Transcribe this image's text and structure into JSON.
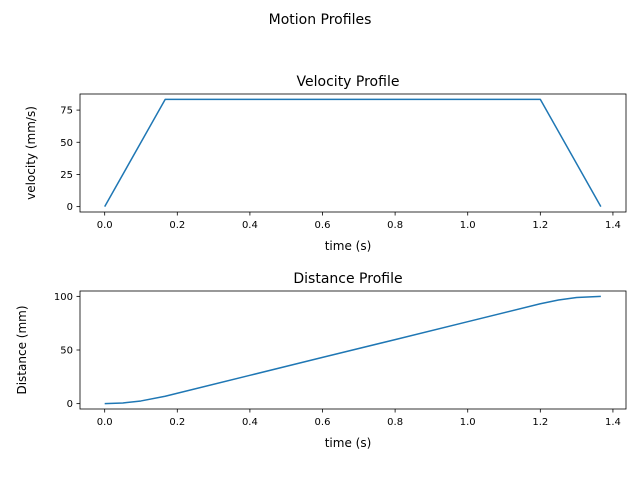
{
  "figure": {
    "suptitle": "Motion Profiles"
  },
  "chart_data": [
    {
      "type": "line",
      "title": "Velocity Profile",
      "xlabel": "time (s)",
      "ylabel": "velocity (mm/s)",
      "xlim": [
        -0.068,
        1.436
      ],
      "ylim": [
        -4.17,
        87.5
      ],
      "xticks": [
        0.0,
        0.2,
        0.4,
        0.6,
        0.8,
        1.0,
        1.2,
        1.4
      ],
      "xtick_labels": [
        "0.0",
        "0.2",
        "0.4",
        "0.6",
        "0.8",
        "1.0",
        "1.2",
        "1.4"
      ],
      "yticks": [
        0,
        25,
        50,
        75
      ],
      "ytick_labels": [
        "0",
        "25",
        "50",
        "75"
      ],
      "grid": false,
      "series": [
        {
          "color": "#1f77b4",
          "x": [
            0.0,
            0.1667,
            1.2,
            1.3667
          ],
          "y": [
            0,
            83.33,
            83.33,
            0
          ]
        }
      ]
    },
    {
      "type": "line",
      "title": "Distance Profile",
      "xlabel": "time (s)",
      "ylabel": "Distance (mm)",
      "xlim": [
        -0.068,
        1.436
      ],
      "ylim": [
        -5,
        105
      ],
      "xticks": [
        0.0,
        0.2,
        0.4,
        0.6,
        0.8,
        1.0,
        1.2,
        1.4
      ],
      "xtick_labels": [
        "0.0",
        "0.2",
        "0.4",
        "0.6",
        "0.8",
        "1.0",
        "1.2",
        "1.4"
      ],
      "yticks": [
        0,
        50,
        100
      ],
      "ytick_labels": [
        "0",
        "50",
        "100"
      ],
      "grid": false,
      "series": [
        {
          "color": "#1f77b4",
          "x": [
            0.0,
            0.05,
            0.1,
            0.1667,
            0.2,
            0.4,
            0.6,
            0.8,
            1.0,
            1.2,
            1.25,
            1.3,
            1.3667
          ],
          "y": [
            0,
            0.6,
            2.5,
            6.9,
            9.7,
            26.4,
            43.1,
            59.7,
            76.4,
            93.1,
            96.6,
            98.9,
            100
          ]
        }
      ]
    }
  ]
}
